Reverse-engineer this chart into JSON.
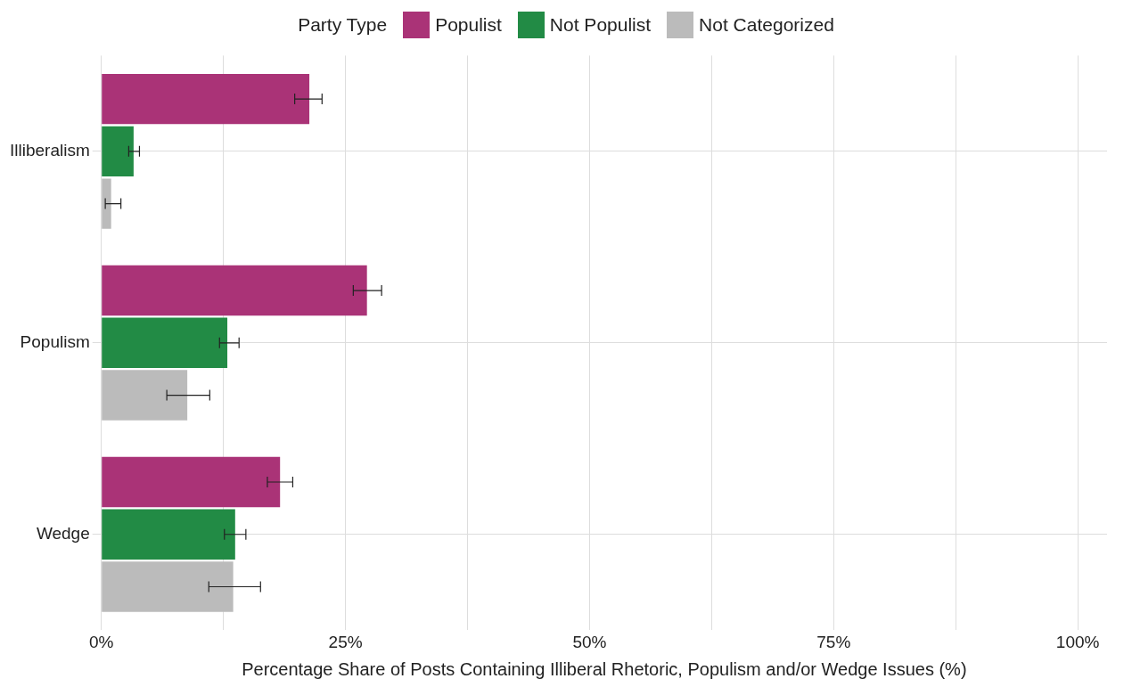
{
  "chart_data": {
    "type": "bar",
    "orientation": "horizontal",
    "xlabel": "Percentage Share of Posts Containing Illiberal Rhetoric, Populism and/or Wedge Issues (%)",
    "legend_title": "Party Type",
    "legend": "top",
    "grid": true,
    "categories": [
      "Illiberalism",
      "Populism",
      "Wedge"
    ],
    "xlim": [
      0,
      103
    ],
    "xticks": [
      {
        "value": 0,
        "label": "0%"
      },
      {
        "value": 12.5,
        "label": null
      },
      {
        "value": 25,
        "label": "25%"
      },
      {
        "value": 37.5,
        "label": null
      },
      {
        "value": 50,
        "label": "50%"
      },
      {
        "value": 62.5,
        "label": null
      },
      {
        "value": 75,
        "label": "75%"
      },
      {
        "value": 87.5,
        "label": null
      },
      {
        "value": 100,
        "label": "100%"
      }
    ],
    "series": [
      {
        "name": "Populist",
        "color": "#aa3377",
        "values": [
          21.3,
          27.2,
          18.3
        ],
        "errors": [
          [
            19.8,
            22.6
          ],
          [
            25.8,
            28.7
          ],
          [
            17.0,
            19.6
          ]
        ]
      },
      {
        "name": "Not Populist",
        "color": "#228b45",
        "values": [
          3.3,
          12.9,
          13.7
        ],
        "errors": [
          [
            2.8,
            3.9
          ],
          [
            12.1,
            14.1
          ],
          [
            12.6,
            14.8
          ]
        ]
      },
      {
        "name": "Not Categorized",
        "color": "#bbbbbb",
        "values": [
          1.0,
          8.8,
          13.5
        ],
        "errors": [
          [
            0.4,
            2.0
          ],
          [
            6.7,
            11.1
          ],
          [
            11.0,
            16.3
          ]
        ]
      }
    ]
  }
}
